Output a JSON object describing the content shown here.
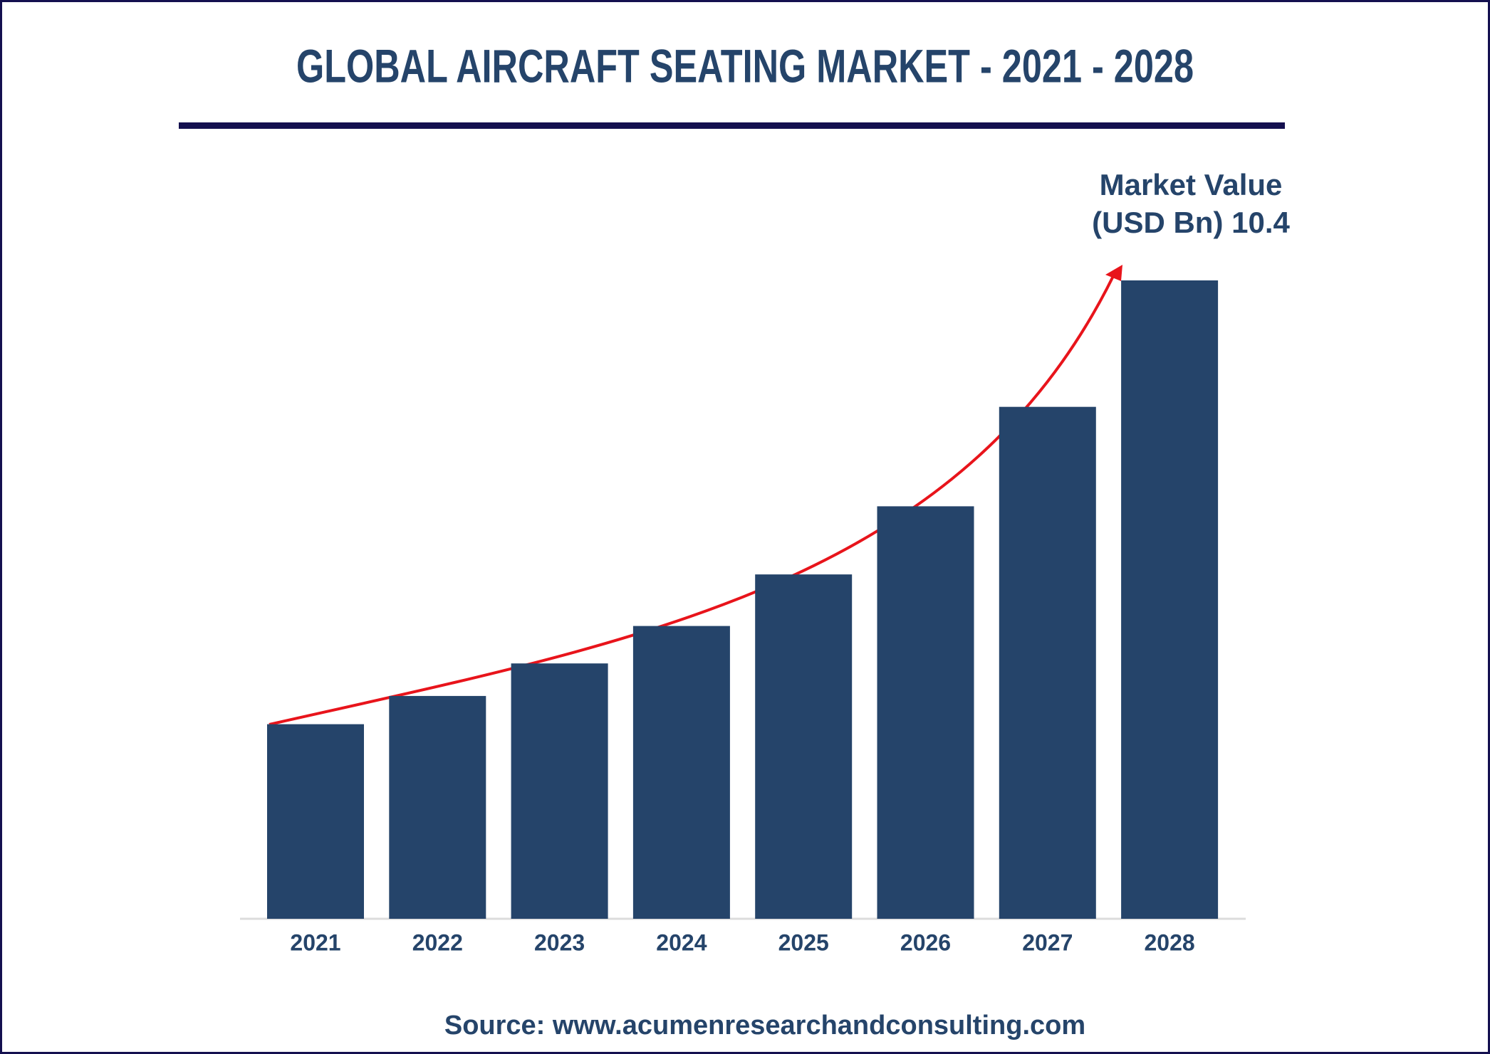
{
  "chart_data": {
    "type": "bar",
    "title": "GLOBAL AIRCRAFT SEATING MARKET - 2021 - 2028",
    "annotation": [
      "Market Value",
      "(USD Bn)"
    ],
    "categories": [
      "2021",
      "2022",
      "2023",
      "2024",
      "2025",
      "2026",
      "2027",
      "2028"
    ],
    "values": [
      3.17,
      3.63,
      4.16,
      4.77,
      5.61,
      6.72,
      8.34,
      10.4
    ],
    "color": "#25446a",
    "source": "Source: www.acumenresearchandconsulting.com"
  }
}
